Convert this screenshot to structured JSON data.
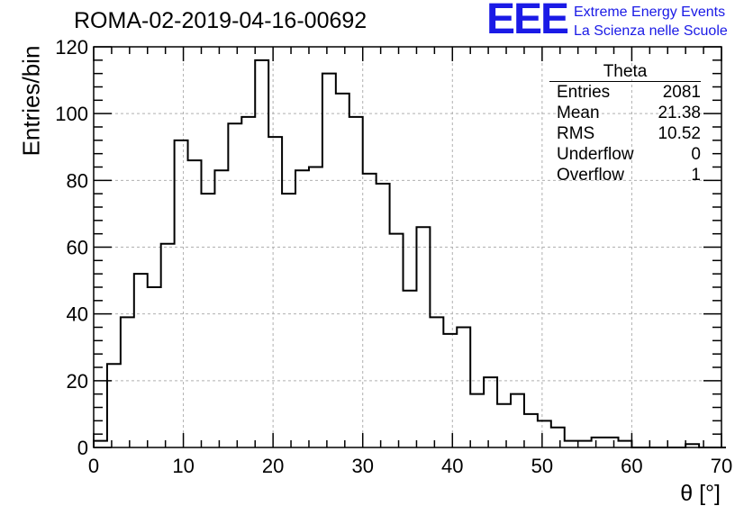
{
  "header": {
    "run_title": "ROMA-02-2019-04-16-00692",
    "logo_text": "EEE",
    "logo_line1": "Extreme Energy Events",
    "logo_line2": "La Scienza nelle Scuole"
  },
  "stats_box": {
    "name": "Theta",
    "rows": [
      {
        "label": "Entries",
        "value": "2081"
      },
      {
        "label": "Mean",
        "value": "21.38"
      },
      {
        "label": "RMS",
        "value": "10.52"
      },
      {
        "label": "Underflow",
        "value": "0"
      },
      {
        "label": "Overflow",
        "value": "1"
      }
    ]
  },
  "chart_data": {
    "type": "histogram",
    "title": "ROMA-02-2019-04-16-00692",
    "xlabel": "θ [°]",
    "ylabel": "Entries/bin",
    "xlim": [
      0,
      70
    ],
    "ylim": [
      0,
      120
    ],
    "bin_width": 1.5,
    "bin_edges_start": 0,
    "values": [
      2,
      25,
      39,
      52,
      48,
      61,
      92,
      86,
      76,
      83,
      97,
      99,
      116,
      93,
      76,
      83,
      84,
      112,
      106,
      99,
      82,
      79,
      64,
      47,
      66,
      39,
      34,
      36,
      16,
      21,
      13,
      16,
      10,
      8,
      6,
      2,
      2,
      3,
      3,
      2,
      0,
      0,
      0,
      0,
      1,
      0,
      0
    ],
    "x_ticks": [
      0,
      10,
      20,
      30,
      40,
      50,
      60,
      70
    ],
    "y_ticks": [
      0,
      20,
      40,
      60,
      80,
      100,
      120
    ],
    "grid": true,
    "line_color": "#000000",
    "grid_color": "#b0b0b0",
    "logo_color": "#1a1ae6"
  }
}
